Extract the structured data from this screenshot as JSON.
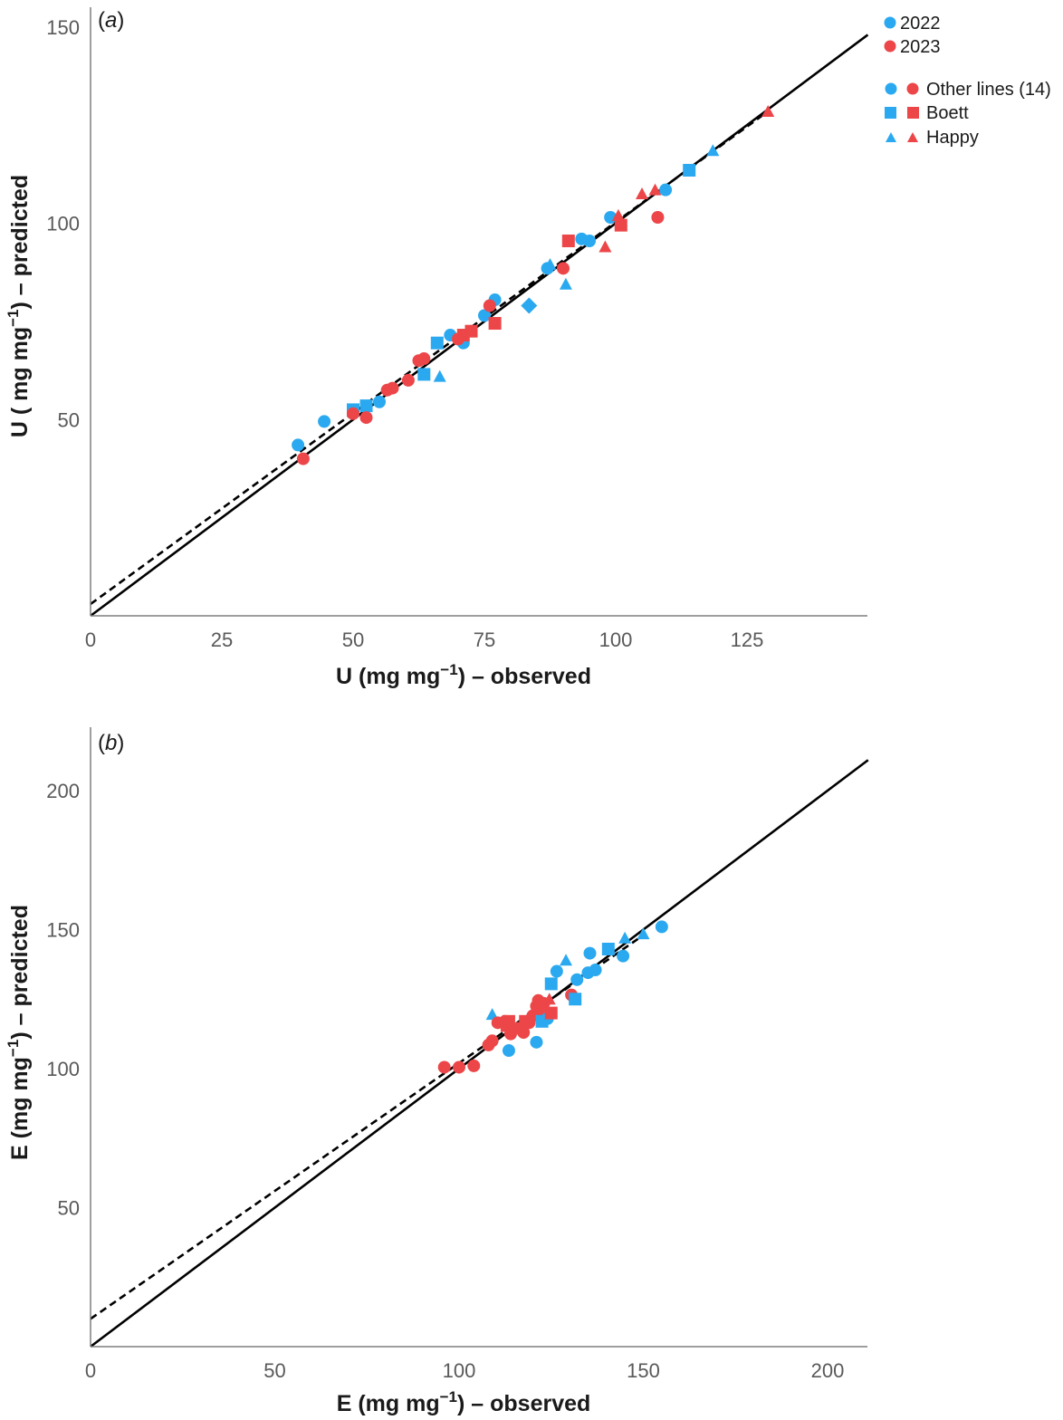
{
  "colors": {
    "y2022": "#2aa9f0",
    "y2023": "#ec4649",
    "axis": "#7f7f7f",
    "line": "#000000"
  },
  "legend": {
    "years": [
      {
        "label": "2022",
        "color_key": "y2022"
      },
      {
        "label": "2023",
        "color_key": "y2023"
      }
    ],
    "shapes": [
      {
        "label": "Other lines (14)",
        "shape": "circle"
      },
      {
        "label": "Boett",
        "shape": "square"
      },
      {
        "label": "Happy",
        "shape": "triangle"
      }
    ],
    "placement": "top-right"
  },
  "chart_data": [
    {
      "panel_label": "a",
      "type": "scatter",
      "xlabel": {
        "base": "U (mg mg",
        "sup": "−1",
        "tail": ") – observed"
      },
      "ylabel": {
        "base": "U ( mg mg",
        "sup": "−1",
        "tail": ") – predicted"
      },
      "xlim": [
        0,
        148
      ],
      "ylim": [
        0,
        152
      ],
      "xticks": [
        0,
        25,
        50,
        75,
        100,
        125
      ],
      "yticks": [
        50,
        100,
        150
      ],
      "grid": false,
      "lines": [
        {
          "style": "solid",
          "x": [
            0,
            148
          ],
          "y": [
            0,
            148
          ]
        },
        {
          "style": "dashed",
          "x": [
            0,
            129
          ],
          "y": [
            3,
            128.5
          ]
        }
      ],
      "points": [
        {
          "x": 39.5,
          "y": 43.5,
          "year": "2022",
          "shape": "circle"
        },
        {
          "x": 44.5,
          "y": 49.5,
          "year": "2022",
          "shape": "circle"
        },
        {
          "x": 40.5,
          "y": 40.0,
          "year": "2023",
          "shape": "circle"
        },
        {
          "x": 50.0,
          "y": 52.5,
          "year": "2022",
          "shape": "square"
        },
        {
          "x": 52.5,
          "y": 53.5,
          "year": "2022",
          "shape": "square"
        },
        {
          "x": 55.0,
          "y": 54.5,
          "year": "2022",
          "shape": "circle"
        },
        {
          "x": 50.0,
          "y": 51.5,
          "year": "2023",
          "shape": "circle"
        },
        {
          "x": 52.5,
          "y": 50.5,
          "year": "2023",
          "shape": "circle"
        },
        {
          "x": 56.5,
          "y": 57.5,
          "year": "2023",
          "shape": "circle"
        },
        {
          "x": 57.5,
          "y": 58.0,
          "year": "2023",
          "shape": "circle"
        },
        {
          "x": 60.5,
          "y": 60.0,
          "year": "2023",
          "shape": "circle"
        },
        {
          "x": 62.5,
          "y": 65.0,
          "year": "2023",
          "shape": "circle"
        },
        {
          "x": 63.5,
          "y": 65.5,
          "year": "2023",
          "shape": "circle"
        },
        {
          "x": 63.5,
          "y": 61.5,
          "year": "2022",
          "shape": "square"
        },
        {
          "x": 66.5,
          "y": 61.0,
          "year": "2022",
          "shape": "triangle"
        },
        {
          "x": 66.0,
          "y": 69.5,
          "year": "2022",
          "shape": "square"
        },
        {
          "x": 68.5,
          "y": 71.5,
          "year": "2022",
          "shape": "circle"
        },
        {
          "x": 71.0,
          "y": 69.5,
          "year": "2022",
          "shape": "circle"
        },
        {
          "x": 70.0,
          "y": 70.5,
          "year": "2023",
          "shape": "circle"
        },
        {
          "x": 71.0,
          "y": 71.5,
          "year": "2023",
          "shape": "square"
        },
        {
          "x": 72.5,
          "y": 72.5,
          "year": "2023",
          "shape": "square"
        },
        {
          "x": 75.0,
          "y": 76.5,
          "year": "2022",
          "shape": "circle"
        },
        {
          "x": 77.0,
          "y": 80.5,
          "year": "2022",
          "shape": "circle"
        },
        {
          "x": 76.0,
          "y": 79.0,
          "year": "2023",
          "shape": "circle"
        },
        {
          "x": 77.0,
          "y": 74.5,
          "year": "2023",
          "shape": "square"
        },
        {
          "x": 83.5,
          "y": 79.0,
          "year": "2022",
          "shape": "diamond"
        },
        {
          "x": 87.0,
          "y": 88.5,
          "year": "2022",
          "shape": "circle"
        },
        {
          "x": 87.5,
          "y": 89.5,
          "year": "2022",
          "shape": "triangle"
        },
        {
          "x": 90.0,
          "y": 88.5,
          "year": "2023",
          "shape": "circle"
        },
        {
          "x": 90.5,
          "y": 84.5,
          "year": "2022",
          "shape": "triangle"
        },
        {
          "x": 91.0,
          "y": 95.5,
          "year": "2023",
          "shape": "square"
        },
        {
          "x": 93.5,
          "y": 96.0,
          "year": "2022",
          "shape": "circle"
        },
        {
          "x": 95.0,
          "y": 95.5,
          "year": "2022",
          "shape": "circle"
        },
        {
          "x": 98.0,
          "y": 94.0,
          "year": "2023",
          "shape": "triangle"
        },
        {
          "x": 99.0,
          "y": 101.5,
          "year": "2022",
          "shape": "circle"
        },
        {
          "x": 100.5,
          "y": 102.0,
          "year": "2023",
          "shape": "triangle"
        },
        {
          "x": 101.0,
          "y": 99.5,
          "year": "2023",
          "shape": "square"
        },
        {
          "x": 105.0,
          "y": 107.5,
          "year": "2023",
          "shape": "triangle"
        },
        {
          "x": 107.5,
          "y": 108.5,
          "year": "2023",
          "shape": "triangle"
        },
        {
          "x": 108.0,
          "y": 101.5,
          "year": "2023",
          "shape": "circle"
        },
        {
          "x": 109.5,
          "y": 108.5,
          "year": "2022",
          "shape": "circle"
        },
        {
          "x": 114.0,
          "y": 113.5,
          "year": "2022",
          "shape": "square"
        },
        {
          "x": 118.5,
          "y": 118.5,
          "year": "2022",
          "shape": "triangle"
        },
        {
          "x": 129.0,
          "y": 128.5,
          "year": "2023",
          "shape": "triangle"
        }
      ]
    },
    {
      "panel_label": "b",
      "type": "scatter",
      "xlabel": {
        "base": "E (mg mg",
        "sup": "−1",
        "tail": ") – observed"
      },
      "ylabel": {
        "base": "E (mg mg",
        "sup": "−1",
        "tail": ") – predicted"
      },
      "xlim": [
        0,
        211
      ],
      "ylim": [
        0,
        222
      ],
      "xticks": [
        0,
        50,
        100,
        150,
        200
      ],
      "yticks": [
        50,
        100,
        150,
        200
      ],
      "grid": false,
      "lines": [
        {
          "style": "solid",
          "x": [
            0,
            211
          ],
          "y": [
            0,
            211
          ]
        },
        {
          "style": "dashed",
          "x": [
            0,
            150
          ],
          "y": [
            10,
            148
          ]
        }
      ],
      "points": [
        {
          "x": 96.0,
          "y": 100.5,
          "year": "2023",
          "shape": "circle"
        },
        {
          "x": 100.0,
          "y": 100.5,
          "year": "2023",
          "shape": "circle"
        },
        {
          "x": 104.0,
          "y": 101.0,
          "year": "2023",
          "shape": "circle"
        },
        {
          "x": 108.0,
          "y": 108.5,
          "year": "2023",
          "shape": "circle"
        },
        {
          "x": 109.0,
          "y": 110.0,
          "year": "2023",
          "shape": "circle"
        },
        {
          "x": 109.0,
          "y": 119.5,
          "year": "2022",
          "shape": "triangle"
        },
        {
          "x": 110.5,
          "y": 116.5,
          "year": "2023",
          "shape": "circle"
        },
        {
          "x": 112.5,
          "y": 117.0,
          "year": "2023",
          "shape": "circle"
        },
        {
          "x": 113.0,
          "y": 115.5,
          "year": "2023",
          "shape": "square"
        },
        {
          "x": 113.5,
          "y": 117.0,
          "year": "2023",
          "shape": "square"
        },
        {
          "x": 114.0,
          "y": 112.5,
          "year": "2023",
          "shape": "circle"
        },
        {
          "x": 116.0,
          "y": 114.5,
          "year": "2023",
          "shape": "circle"
        },
        {
          "x": 117.5,
          "y": 113.0,
          "year": "2023",
          "shape": "circle"
        },
        {
          "x": 118.0,
          "y": 117.0,
          "year": "2023",
          "shape": "square"
        },
        {
          "x": 119.0,
          "y": 116.5,
          "year": "2023",
          "shape": "circle"
        },
        {
          "x": 120.0,
          "y": 119.0,
          "year": "2023",
          "shape": "circle"
        },
        {
          "x": 121.0,
          "y": 122.5,
          "year": "2023",
          "shape": "circle"
        },
        {
          "x": 121.5,
          "y": 124.5,
          "year": "2023",
          "shape": "circle"
        },
        {
          "x": 122.0,
          "y": 120.0,
          "year": "2023",
          "shape": "circle"
        },
        {
          "x": 122.5,
          "y": 117.0,
          "year": "2022",
          "shape": "square"
        },
        {
          "x": 123.0,
          "y": 123.5,
          "year": "2023",
          "shape": "circle"
        },
        {
          "x": 124.0,
          "y": 118.0,
          "year": "2022",
          "shape": "circle"
        },
        {
          "x": 124.5,
          "y": 125.0,
          "year": "2023",
          "shape": "triangle"
        },
        {
          "x": 125.0,
          "y": 120.0,
          "year": "2023",
          "shape": "square"
        },
        {
          "x": 125.0,
          "y": 130.5,
          "year": "2022",
          "shape": "square"
        },
        {
          "x": 121.0,
          "y": 109.5,
          "year": "2022",
          "shape": "circle"
        },
        {
          "x": 113.5,
          "y": 106.5,
          "year": "2022",
          "shape": "circle"
        },
        {
          "x": 126.5,
          "y": 135.0,
          "year": "2022",
          "shape": "circle"
        },
        {
          "x": 129.0,
          "y": 139.0,
          "year": "2022",
          "shape": "triangle"
        },
        {
          "x": 130.5,
          "y": 126.5,
          "year": "2023",
          "shape": "circle"
        },
        {
          "x": 131.5,
          "y": 125.0,
          "year": "2022",
          "shape": "square"
        },
        {
          "x": 132.0,
          "y": 132.0,
          "year": "2022",
          "shape": "circle"
        },
        {
          "x": 135.0,
          "y": 134.5,
          "year": "2022",
          "shape": "circle"
        },
        {
          "x": 135.5,
          "y": 141.5,
          "year": "2022",
          "shape": "circle"
        },
        {
          "x": 137.0,
          "y": 135.5,
          "year": "2022",
          "shape": "circle"
        },
        {
          "x": 140.5,
          "y": 143.0,
          "year": "2022",
          "shape": "square"
        },
        {
          "x": 144.5,
          "y": 140.5,
          "year": "2022",
          "shape": "circle"
        },
        {
          "x": 145.0,
          "y": 147.0,
          "year": "2022",
          "shape": "triangle"
        },
        {
          "x": 150.0,
          "y": 148.5,
          "year": "2022",
          "shape": "triangle"
        },
        {
          "x": 155.0,
          "y": 151.0,
          "year": "2022",
          "shape": "circle"
        }
      ]
    }
  ]
}
